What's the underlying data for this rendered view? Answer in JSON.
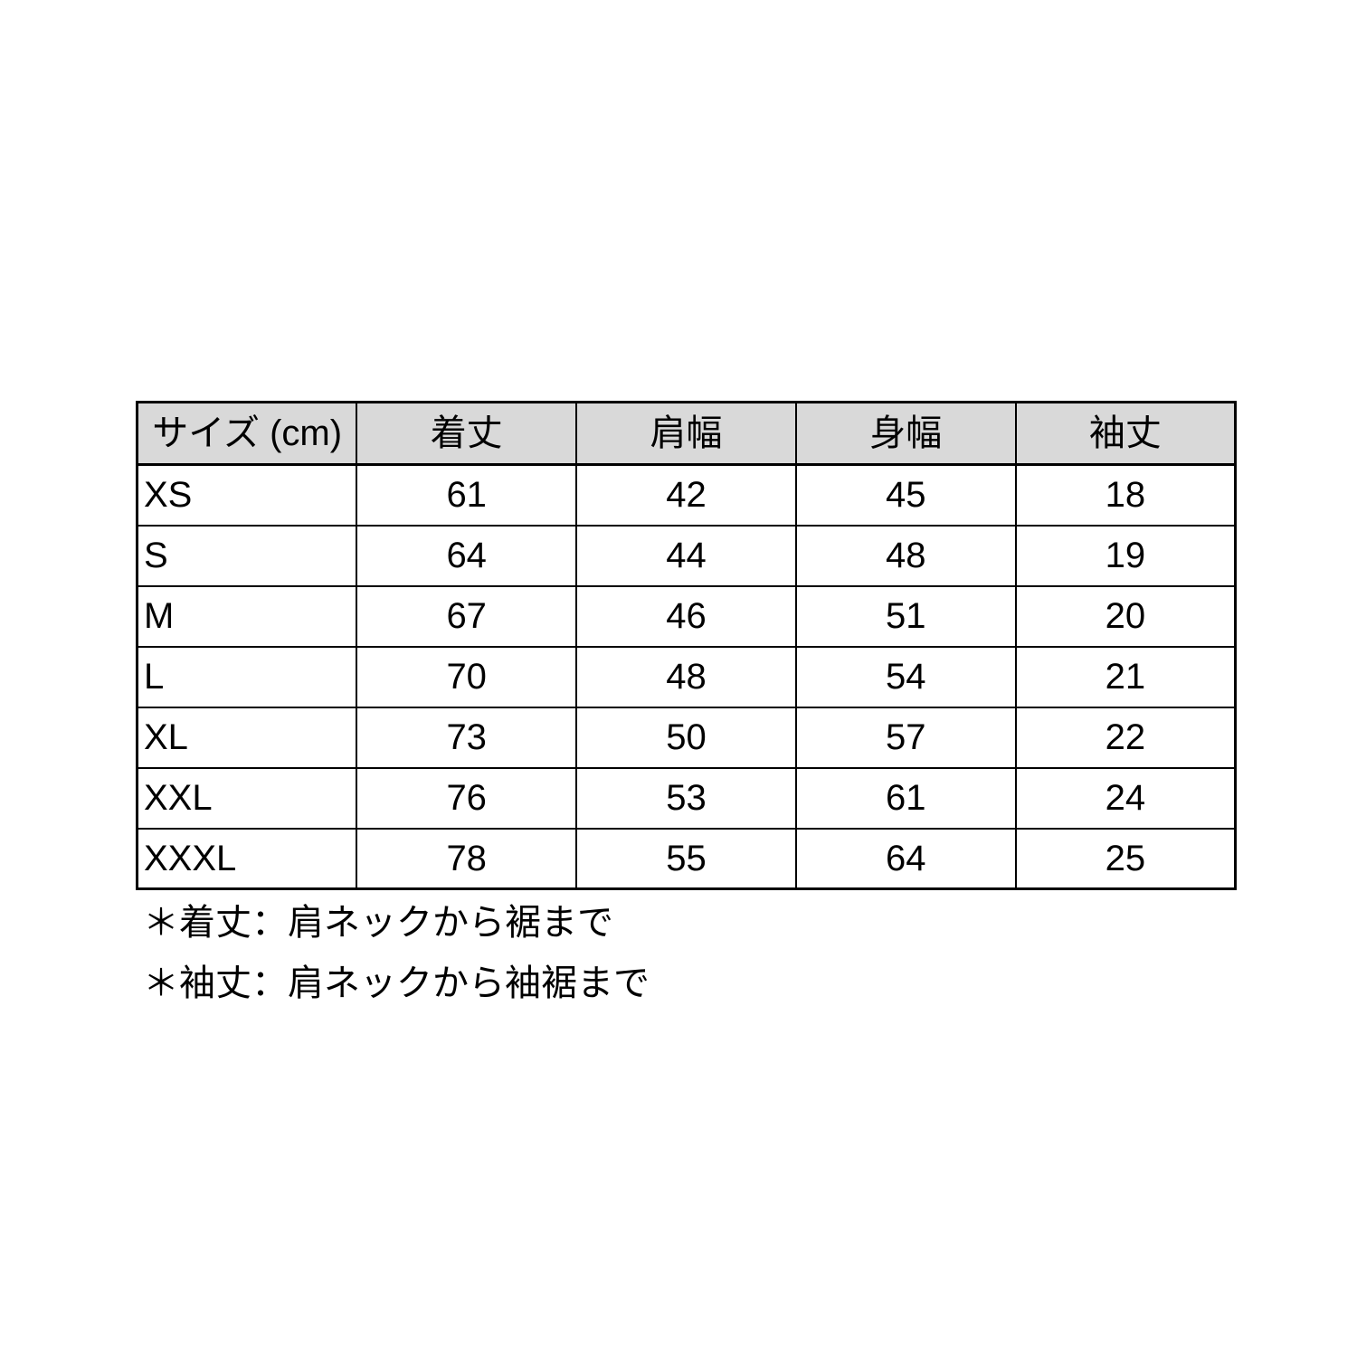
{
  "size_chart": {
    "headers": [
      "サイズ (cm)",
      "着丈",
      "肩幅",
      "身幅",
      "袖丈"
    ],
    "rows": [
      {
        "size": "XS",
        "values": [
          "61",
          "42",
          "45",
          "18"
        ]
      },
      {
        "size": "S",
        "values": [
          "64",
          "44",
          "48",
          "19"
        ]
      },
      {
        "size": "M",
        "values": [
          "67",
          "46",
          "51",
          "20"
        ]
      },
      {
        "size": "L",
        "values": [
          "70",
          "48",
          "54",
          "21"
        ]
      },
      {
        "size": "XL",
        "values": [
          "73",
          "50",
          "57",
          "22"
        ]
      },
      {
        "size": "XXL",
        "values": [
          "76",
          "53",
          "61",
          "24"
        ]
      },
      {
        "size": "XXXL",
        "values": [
          "78",
          "55",
          "64",
          "25"
        ]
      }
    ],
    "colors": {
      "header_bg": "#d9d9d9",
      "border": "#000000",
      "text": "#000000",
      "page_bg": "#ffffff"
    }
  },
  "notes": [
    "＊着丈：肩ネックから裾まで",
    "＊袖丈：肩ネックから袖裾まで"
  ]
}
